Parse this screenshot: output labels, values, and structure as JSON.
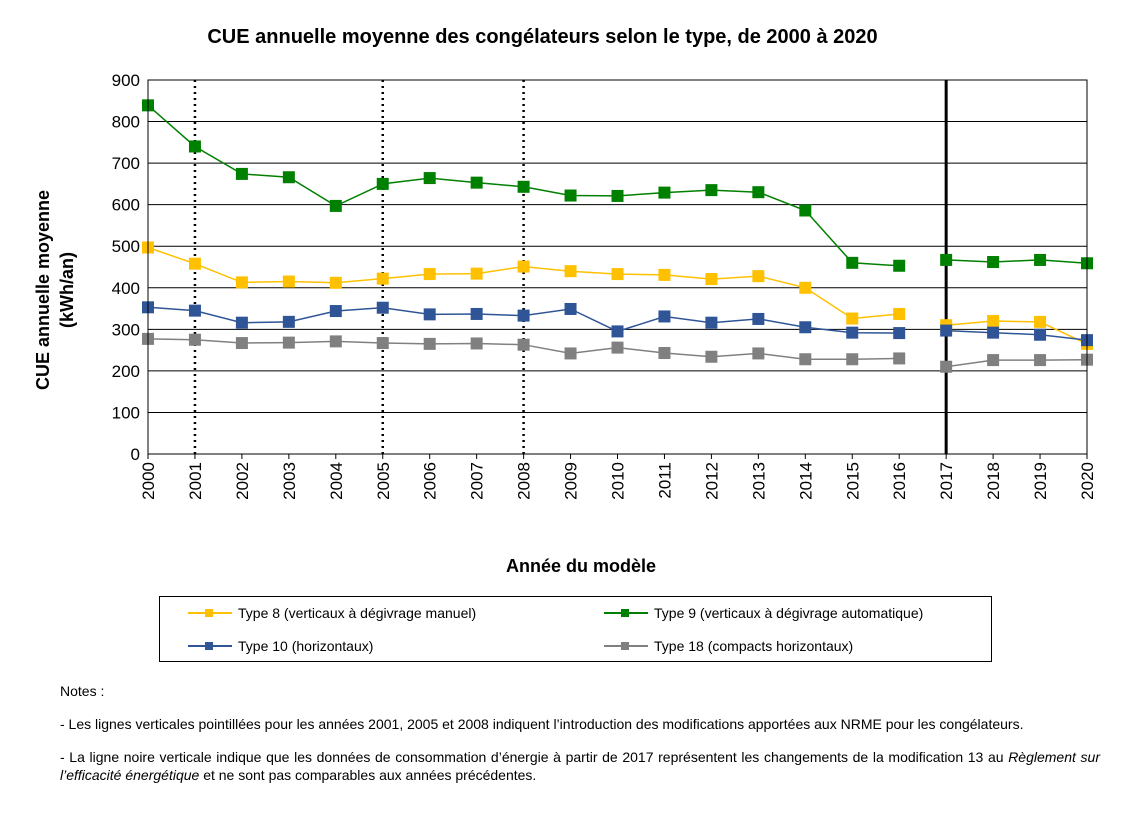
{
  "chart_data": {
    "type": "line",
    "title": "CUE annuelle moyenne des congélateurs selon le type, de 2000 à 2020",
    "xlabel": "Année du modèle",
    "ylabel_line1": "CUE annuelle moyenne",
    "ylabel_line2": "(kWh/an)",
    "ylim": [
      0,
      900
    ],
    "yticks": [
      "0",
      "100",
      "200",
      "300",
      "400",
      "500",
      "600",
      "700",
      "800",
      "900"
    ],
    "categories": [
      "2000",
      "2001",
      "2002",
      "2003",
      "2004",
      "2005",
      "2006",
      "2007",
      "2008",
      "2009",
      "2010",
      "2011",
      "2012",
      "2013",
      "2014",
      "2015",
      "2016",
      "2017",
      "2018",
      "2019",
      "2020"
    ],
    "grid": true,
    "dotted_lines_at": [
      "2001",
      "2005",
      "2008"
    ],
    "solid_line_at": "2017",
    "legend_position": "bottom",
    "series": [
      {
        "name": "Type 8 (verticaux à dégivrage manuel)",
        "color": "#FFC000",
        "values": [
          497,
          458,
          413,
          415,
          412,
          422,
          433,
          434,
          451,
          440,
          433,
          431,
          421,
          428,
          400,
          326,
          337,
          310,
          320,
          318,
          265
        ]
      },
      {
        "name": "Type 9 (verticaux à dégivrage automatique)",
        "color": "#008000",
        "values": [
          839,
          740,
          674,
          666,
          597,
          650,
          664,
          653,
          643,
          622,
          621,
          629,
          635,
          630,
          586,
          460,
          453,
          467,
          462,
          467,
          459
        ]
      },
      {
        "name": "Type 10 (horizontaux)",
        "color": "#2F5597",
        "values": [
          353,
          345,
          316,
          318,
          344,
          352,
          336,
          337,
          333,
          349,
          295,
          331,
          316,
          325,
          305,
          292,
          291,
          297,
          292,
          287,
          274
        ]
      },
      {
        "name": "Type 18 (compacts horizontaux)",
        "color": "#808080",
        "values": [
          277,
          275,
          267,
          268,
          271,
          267,
          265,
          266,
          263,
          242,
          256,
          243,
          234,
          242,
          228,
          228,
          230,
          210,
          226,
          226,
          227
        ]
      }
    ]
  },
  "notes": {
    "heading": "Notes :",
    "line1": "- Les lignes verticales pointillées pour les années 2001, 2005 et 2008 indiquent l’introduction des modifications apportées aux NRME pour les congélateurs.",
    "line2_a": "- La ligne noire verticale indique que les données de consommation d’énergie à partir de 2017 représentent les changements de la modification 13 au ",
    "line2_italic": "Règlement sur l’efficacité énergétique",
    "line2_b": " et ne sont pas comparables aux années précédentes."
  }
}
